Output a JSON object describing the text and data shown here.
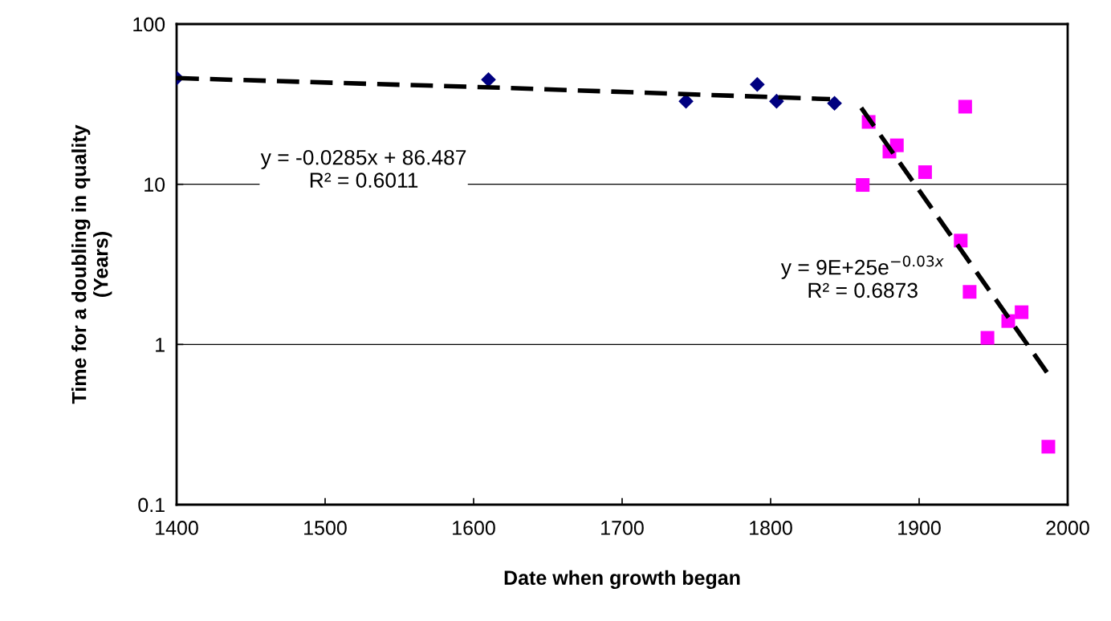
{
  "chart_data": {
    "type": "scatter",
    "xlabel": "Date when growth began",
    "ylabel": "Time for a doubling in quality\n(Years)",
    "log": "y",
    "xlim": [
      1400,
      2000
    ],
    "xticks": [
      1400,
      1500,
      1600,
      1700,
      1800,
      1900,
      2000
    ],
    "ylim": [
      0.1,
      100
    ],
    "yticks": [
      0.1,
      1,
      10,
      100
    ],
    "grid": "y",
    "legend": false,
    "series": [
      {
        "marker": "diamond",
        "color": "#000080",
        "x": [
          1400,
          1610,
          1743,
          1791,
          1804,
          1843
        ],
        "values": [
          46,
          45,
          33,
          42,
          33,
          32
        ]
      },
      {
        "marker": "square",
        "color": "#ff00ff",
        "x": [
          1862,
          1866,
          1880,
          1885,
          1904,
          1931,
          1928,
          1934,
          1946,
          1960,
          1969,
          1987
        ],
        "values": [
          9.9,
          24.5,
          16,
          17.5,
          11.9,
          30.5,
          4.45,
          2.13,
          1.1,
          1.4,
          1.59,
          0.23
        ]
      },
      {
        "type": "line",
        "line_style": "dashed",
        "marker": "none",
        "color": "#000000",
        "x": [
          1400,
          1620,
          1840
        ],
        "values": [
          46,
          40,
          34
        ]
      },
      {
        "type": "line",
        "line_style": "dashed",
        "marker": "none",
        "color": "#000000",
        "x": [
          1861,
          1987
        ],
        "values": [
          30,
          0.65
        ]
      }
    ],
    "annotations": [
      "y = -0.0285x + 86.487\nR² = 0.6011",
      "y = 9E+25e$^{−0.03x}$\nR² = 0.6873"
    ]
  }
}
